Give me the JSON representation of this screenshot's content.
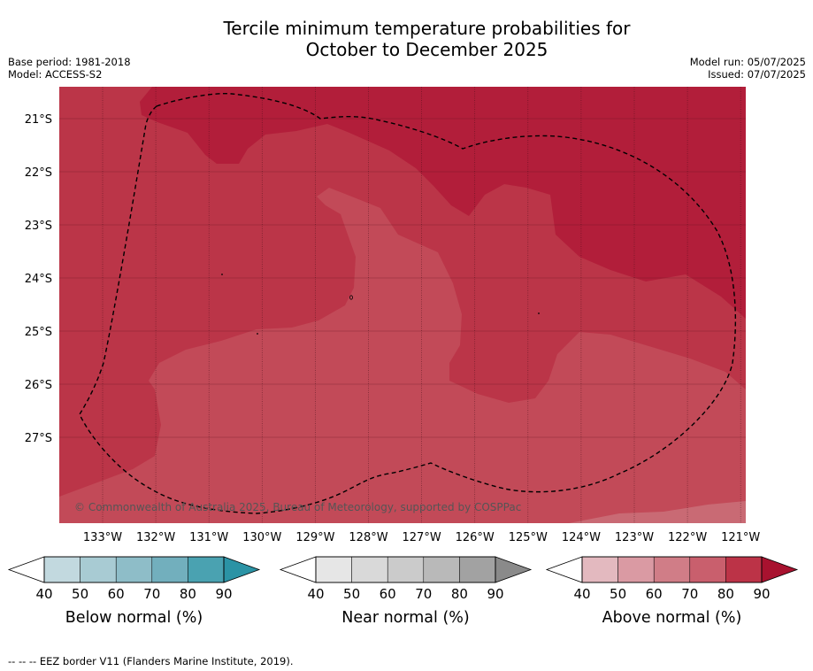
{
  "title_line1": "Tercile minimum temperature probabilities for",
  "title_line2": "October to December 2025",
  "base_period": "Base period: 1981-2018",
  "model": "Model: ACCESS-S2",
  "model_run": "Model run: 05/07/2025",
  "issued": "Issued: 07/07/2025",
  "copyright": "© Commonwealth of Australia 2025, Bureau of Meteorology, supported by COSPPac",
  "footnote": "--  --  -- EEZ border V11 (Flanders Marine Institute, 2019).",
  "lat_labels": [
    "21°S",
    "22°S",
    "23°S",
    "24°S",
    "25°S",
    "26°S",
    "27°S"
  ],
  "lon_labels": [
    "133°W",
    "132°W",
    "131°W",
    "130°W",
    "129°W",
    "128°W",
    "127°W",
    "126°W",
    "125°W",
    "124°W",
    "123°W",
    "122°W",
    "121°W"
  ],
  "colorbars": [
    {
      "title": "Below normal (%)",
      "ticks": [
        "40",
        "50",
        "60",
        "70",
        "80",
        "90"
      ],
      "colors": [
        "#ffffff",
        "#c2d9df",
        "#a8cbd3",
        "#8ebdc8",
        "#72afbd",
        "#4aa2b1",
        "#2b93a5"
      ]
    },
    {
      "title": "Near normal (%)",
      "ticks": [
        "40",
        "50",
        "60",
        "70",
        "80",
        "90"
      ],
      "colors": [
        "#ffffff",
        "#e6e6e6",
        "#d9d9d9",
        "#cbcbcb",
        "#b9b9b9",
        "#a2a2a2",
        "#8a8a8a"
      ]
    },
    {
      "title": "Above normal (%)",
      "ticks": [
        "40",
        "50",
        "60",
        "70",
        "80",
        "90"
      ],
      "colors": [
        "#ffffff",
        "#e3b9bf",
        "#da9aa3",
        "#d07d87",
        "#c95f6d",
        "#bc3347",
        "#a8122f"
      ]
    }
  ],
  "map_colors": {
    "p80_90": "#b21e3a",
    "p70_80": "#bb3548",
    "p60_70": "#c24a58",
    "p50_60": "#c96a74",
    "eez": "#000000"
  }
}
